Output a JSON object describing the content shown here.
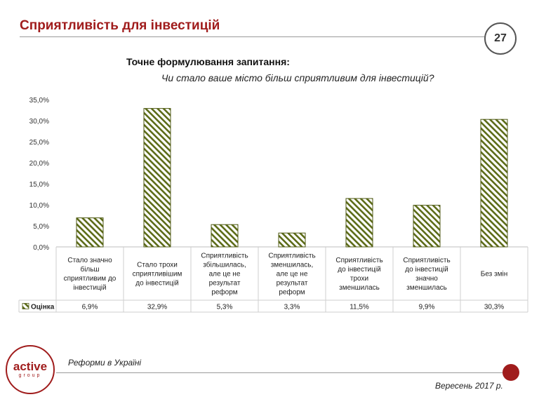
{
  "header": {
    "title": "Сприятливість для інвестицій",
    "page_number": "27"
  },
  "question": {
    "heading": "Точне формулювання запитання:",
    "text": "Чи стало ваше місто більш сприятливим для інвестицій?"
  },
  "chart_data": {
    "type": "bar",
    "title": "",
    "xlabel": "",
    "ylabel": "",
    "ylim": [
      0,
      35
    ],
    "y_ticks": [
      "0,0%",
      "5,0%",
      "10,0%",
      "15,0%",
      "20,0%",
      "25,0%",
      "30,0%",
      "35,0%"
    ],
    "categories": [
      [
        "Стало значно",
        "більш",
        "сприятливим до",
        "інвестицій"
      ],
      [
        "Стало трохи",
        "сприятливішим",
        "до інвестицій"
      ],
      [
        "Сприятливість",
        "збільшилась,",
        "але це не",
        "результат",
        "реформ"
      ],
      [
        "Сприятливість",
        "зменшилась,",
        "але це не",
        "результат",
        "реформ"
      ],
      [
        "Сприятливість",
        "до інвестицій",
        "трохи",
        "зменшилась"
      ],
      [
        "Сприятливість",
        "до інвестицій",
        "значно",
        "зменшилась"
      ],
      [
        "Без змін"
      ]
    ],
    "series": [
      {
        "name": "Оцінка",
        "values": [
          6.9,
          32.9,
          5.3,
          3.3,
          11.5,
          9.9,
          30.3
        ],
        "labels": [
          "6,9%",
          "32,9%",
          "5,3%",
          "3,3%",
          "11,5%",
          "9,9%",
          "30,3%"
        ]
      }
    ],
    "colors": {
      "bar_stroke": "#4f5a14",
      "stripe": "#5c6b17",
      "grid": "#d0d0d0"
    }
  },
  "footer": {
    "logo_word": "active",
    "logo_sub": "group",
    "left_text": "Реформи в Україні",
    "right_text": "Вересень 2017 р."
  }
}
